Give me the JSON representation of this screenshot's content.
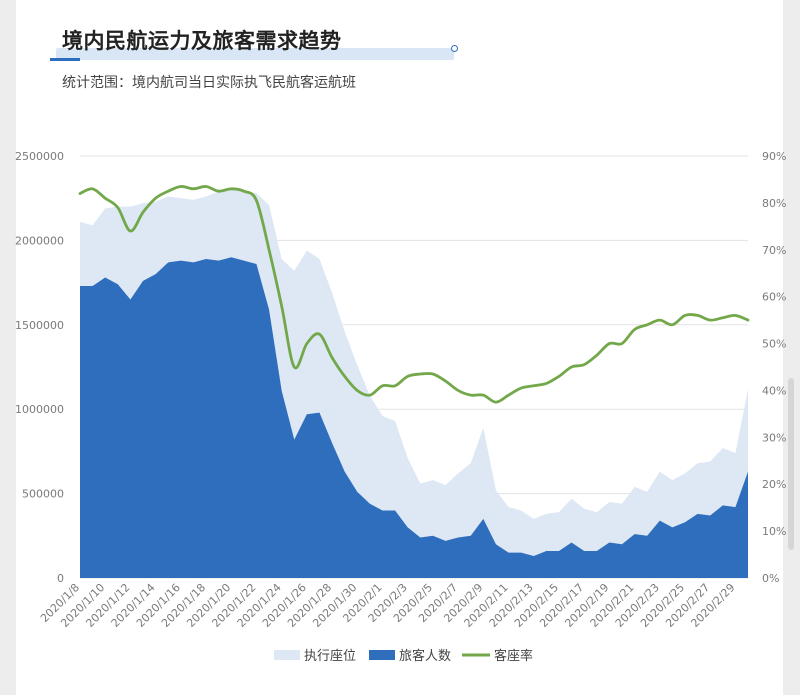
{
  "header": {
    "title": "境内民航运力及旅客需求趋势",
    "subtitle": "统计范围：境内航司当日实际执飞民航客运航班"
  },
  "colors": {
    "seats": "#dde8f4",
    "passengers": "#2f6ebd",
    "load_factor": "#72a84a",
    "grid": "#e3e3e3"
  },
  "chart_data": {
    "type": "area",
    "x": [
      "2020/1/8",
      "2020/1/9",
      "2020/1/10",
      "2020/1/11",
      "2020/1/12",
      "2020/1/13",
      "2020/1/14",
      "2020/1/15",
      "2020/1/16",
      "2020/1/17",
      "2020/1/18",
      "2020/1/19",
      "2020/1/20",
      "2020/1/21",
      "2020/1/22",
      "2020/1/23",
      "2020/1/24",
      "2020/1/25",
      "2020/1/26",
      "2020/1/27",
      "2020/1/28",
      "2020/1/29",
      "2020/1/30",
      "2020/1/31",
      "2020/2/1",
      "2020/2/2",
      "2020/2/3",
      "2020/2/4",
      "2020/2/5",
      "2020/2/6",
      "2020/2/7",
      "2020/2/8",
      "2020/2/9",
      "2020/2/10",
      "2020/2/11",
      "2020/2/12",
      "2020/2/13",
      "2020/2/14",
      "2020/2/15",
      "2020/2/16",
      "2020/2/17",
      "2020/2/18",
      "2020/2/19",
      "2020/2/20",
      "2020/2/21",
      "2020/2/22",
      "2020/2/23",
      "2020/2/24",
      "2020/2/25",
      "2020/2/26",
      "2020/2/27",
      "2020/2/28",
      "2020/2/29",
      "2020/3/1"
    ],
    "x_tick_labels": [
      "2020/1/8",
      "2020/1/10",
      "2020/1/12",
      "2020/1/14",
      "2020/1/16",
      "2020/1/18",
      "2020/1/20",
      "2020/1/22",
      "2020/1/24",
      "2020/1/26",
      "2020/1/28",
      "2020/1/30",
      "2020/2/1",
      "2020/2/3",
      "2020/2/5",
      "2020/2/7",
      "2020/2/9",
      "2020/2/11",
      "2020/2/13",
      "2020/2/15",
      "2020/2/17",
      "2020/2/19",
      "2020/2/21",
      "2020/2/23",
      "2020/2/25",
      "2020/2/27",
      "2020/2/29"
    ],
    "y_left": {
      "min": 0,
      "max": 2500000,
      "ticks": [
        "0",
        "500000",
        "1000000",
        "1500000",
        "2000000",
        "2500000"
      ]
    },
    "y_right": {
      "min": 0,
      "max": 90,
      "ticks": [
        "0%",
        "10%",
        "20%",
        "30%",
        "40%",
        "50%",
        "60%",
        "70%",
        "80%",
        "90%"
      ]
    },
    "legend_position": "bottom",
    "grid": true,
    "series": [
      {
        "name": "执行座位",
        "type": "area",
        "axis": "left",
        "values": [
          2110000,
          2090000,
          2190000,
          2200000,
          2200000,
          2220000,
          2230000,
          2260000,
          2250000,
          2240000,
          2260000,
          2290000,
          2300000,
          2290000,
          2280000,
          2210000,
          1890000,
          1820000,
          1940000,
          1890000,
          1690000,
          1460000,
          1260000,
          1080000,
          960000,
          930000,
          710000,
          560000,
          580000,
          550000,
          620000,
          680000,
          890000,
          520000,
          420000,
          400000,
          350000,
          380000,
          390000,
          470000,
          410000,
          390000,
          450000,
          440000,
          540000,
          510000,
          630000,
          580000,
          620000,
          680000,
          690000,
          770000,
          740000,
          1120000
        ]
      },
      {
        "name": "旅客人数",
        "type": "area",
        "axis": "left",
        "values": [
          1730000,
          1730000,
          1780000,
          1740000,
          1650000,
          1760000,
          1800000,
          1870000,
          1880000,
          1870000,
          1890000,
          1880000,
          1900000,
          1880000,
          1860000,
          1590000,
          1110000,
          820000,
          970000,
          980000,
          800000,
          630000,
          510000,
          440000,
          400000,
          400000,
          300000,
          240000,
          250000,
          220000,
          240000,
          250000,
          350000,
          200000,
          150000,
          150000,
          130000,
          160000,
          160000,
          210000,
          160000,
          160000,
          210000,
          200000,
          260000,
          250000,
          340000,
          300000,
          330000,
          380000,
          370000,
          430000,
          420000,
          630000
        ]
      },
      {
        "name": "客座率",
        "type": "line",
        "axis": "right",
        "values": [
          82,
          83,
          81,
          79,
          74,
          78,
          81,
          82.5,
          83.5,
          83,
          83.5,
          82.5,
          83,
          82.5,
          80.5,
          70,
          58,
          45,
          50,
          52,
          47,
          43,
          40,
          39,
          41,
          41,
          43,
          43.5,
          43.5,
          42,
          40,
          39,
          39,
          37.5,
          39,
          40.5,
          41,
          41.5,
          43,
          45,
          45.5,
          47.5,
          50,
          50,
          53,
          54,
          55,
          54,
          56,
          56,
          55,
          55.5,
          56,
          55
        ]
      }
    ]
  }
}
